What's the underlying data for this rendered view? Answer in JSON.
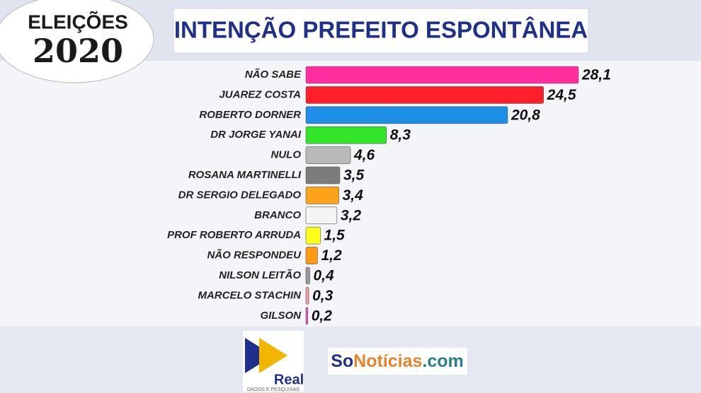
{
  "chart_data": {
    "type": "bar",
    "orientation": "horizontal",
    "title": "INTENÇÃO PREFEITO ESPONTÂNEA",
    "categories": [
      "NÃO SABE",
      "JUAREZ COSTA",
      "ROBERTO DORNER",
      "DR JORGE YANAI",
      "NULO",
      "ROSANA MARTINELLI",
      "DR SERGIO DELEGADO",
      "BRANCO",
      "PROF ROBERTO ARRUDA",
      "NÃO RESPONDEU",
      "NILSON LEITÃO",
      "MARCELO STACHIN",
      "GILSON"
    ],
    "values": [
      28.1,
      24.5,
      20.8,
      8.3,
      4.6,
      3.5,
      3.4,
      3.2,
      1.5,
      1.2,
      0.4,
      0.3,
      0.2
    ],
    "value_labels": [
      "28,1",
      "24,5",
      "20,8",
      "8,3",
      "4,6",
      "3,5",
      "3,4",
      "3,2",
      "1,5",
      "1,2",
      "0,4",
      "0,3",
      "0,2"
    ],
    "colors": [
      "#ff2d9e",
      "#ff1f2a",
      "#1e8fe6",
      "#34e62a",
      "#b9b9b9",
      "#7c7c7c",
      "#ffa319",
      "#f4f4f4",
      "#ffff1a",
      "#ff9a14",
      "#9a9a9a",
      "#f59aa5",
      "#f04fc0"
    ]
  },
  "badge": {
    "line1": "ELEIÇÕES",
    "line2": "2020"
  },
  "footer": {
    "real": "Real",
    "real_sub": "DADOS E PESQUISAS",
    "so": "So",
    "noticias": "Notícias",
    "com": ".com"
  }
}
